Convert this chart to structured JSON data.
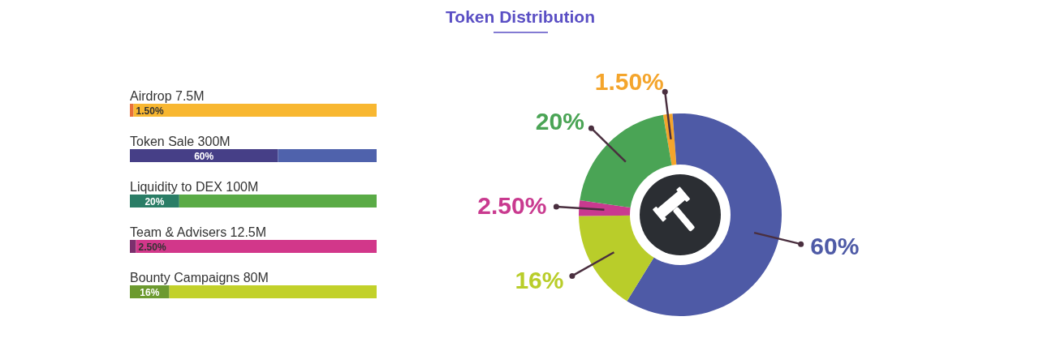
{
  "chart_data": [
    {
      "type": "bar",
      "orientation": "horizontal",
      "stacked": true,
      "categories": [
        "Airdrop 7.5M",
        "Token Sale 300M",
        "Liquidity to DEX 100M",
        "Team & Advisers 12.5M",
        "Bounty Campaigns 80M"
      ],
      "xlim": [
        0,
        100
      ],
      "tick_labels": false,
      "series": [
        {
          "colors": [
            "#e8713a",
            "#463f87",
            "#2a7d66",
            "#7b2f6d",
            "#6c9a2f"
          ],
          "values": [
            1.5,
            60,
            20,
            2.5,
            16
          ],
          "value_labels": [
            "1.50%",
            "60%",
            "20%",
            "2.50%",
            "16%"
          ]
        },
        {
          "colors": [
            "#f8b731",
            "#4f62ac",
            "#5aab46",
            "#d2378a",
            "#c2d12a"
          ],
          "values": [
            98.5,
            40,
            80,
            97.5,
            84
          ]
        }
      ]
    },
    {
      "type": "donut",
      "title": "Token Distribution",
      "categories": [
        null,
        null,
        null,
        null,
        null
      ],
      "values": [
        1.5,
        60,
        16,
        2.5,
        20
      ],
      "colors": [
        "#f4a52c",
        "#4e5aa6",
        "#b9cd2a",
        "#c93a8f",
        "#4aa455"
      ],
      "value_labels": [
        "1.50%",
        "60%",
        "16%",
        "2.50%",
        "20%"
      ]
    }
  ]
}
